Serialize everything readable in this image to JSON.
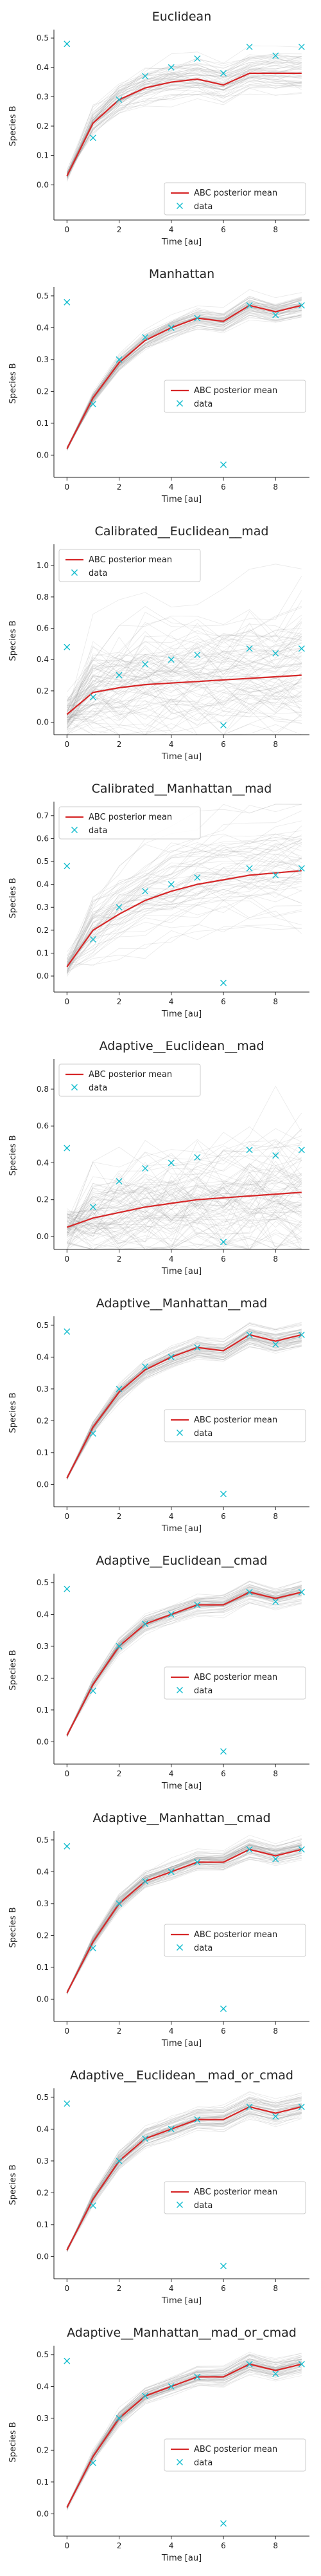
{
  "common": {
    "xlabel": "Time [au]",
    "ylabel": "Species B",
    "legend_mean": "ABC posterior mean",
    "legend_data": "data",
    "colors": {
      "mean": "#d62728",
      "data": "#17becf",
      "samples": "#9a9a9a",
      "axis": "#222222"
    }
  },
  "chart_data": [
    {
      "type": "line",
      "title": "Euclidean",
      "xlabel": "Time [au]",
      "ylabel": "Species B",
      "xlim": [
        -0.5,
        9.3
      ],
      "ylim": [
        -0.12,
        0.52
      ],
      "xticks": [
        0,
        2,
        4,
        6,
        8
      ],
      "yticks": [
        0.0,
        0.1,
        0.2,
        0.3,
        0.4,
        0.5
      ],
      "legend": "lower right",
      "samples_spread": "narrow",
      "series": [
        {
          "name": "ABC posterior mean",
          "x": [
            0,
            1,
            2,
            3,
            4,
            5,
            6,
            7,
            8,
            9
          ],
          "y": [
            0.03,
            0.21,
            0.29,
            0.33,
            0.35,
            0.36,
            0.34,
            0.38,
            0.38,
            0.38
          ]
        },
        {
          "name": "data",
          "x": [
            0,
            1,
            2,
            3,
            4,
            5,
            6,
            7,
            8,
            9
          ],
          "y": [
            0.48,
            0.16,
            0.29,
            0.37,
            0.4,
            0.43,
            0.38,
            0.47,
            0.44,
            0.47
          ]
        }
      ]
    },
    {
      "type": "line",
      "title": "Manhattan",
      "xlabel": "Time [au]",
      "ylabel": "Species B",
      "xlim": [
        -0.5,
        9.3
      ],
      "ylim": [
        -0.07,
        0.52
      ],
      "xticks": [
        0,
        2,
        4,
        6,
        8
      ],
      "yticks": [
        0.0,
        0.1,
        0.2,
        0.3,
        0.4,
        0.5
      ],
      "legend": "center right",
      "samples_spread": "tight",
      "series": [
        {
          "name": "ABC posterior mean",
          "x": [
            0,
            1,
            2,
            3,
            4,
            5,
            6,
            7,
            8,
            9
          ],
          "y": [
            0.02,
            0.18,
            0.29,
            0.36,
            0.4,
            0.43,
            0.42,
            0.47,
            0.45,
            0.47
          ]
        },
        {
          "name": "data",
          "x": [
            0,
            1,
            2,
            3,
            4,
            5,
            6,
            7,
            8,
            9
          ],
          "y": [
            0.48,
            0.16,
            0.3,
            0.37,
            0.4,
            0.43,
            -0.03,
            0.47,
            0.44,
            0.47
          ]
        }
      ]
    },
    {
      "type": "line",
      "title": "Calibrated__Euclidean__mad",
      "xlabel": "Time [au]",
      "ylabel": "Species B",
      "xlim": [
        -0.5,
        9.3
      ],
      "ylim": [
        -0.08,
        1.12
      ],
      "xticks": [
        0,
        2,
        4,
        6,
        8
      ],
      "yticks": [
        0.0,
        0.2,
        0.4,
        0.6,
        0.8,
        1.0
      ],
      "legend": "upper left",
      "samples_spread": "wide",
      "series": [
        {
          "name": "ABC posterior mean",
          "x": [
            0,
            1,
            2,
            3,
            4,
            5,
            6,
            7,
            8,
            9
          ],
          "y": [
            0.05,
            0.19,
            0.22,
            0.24,
            0.25,
            0.26,
            0.27,
            0.28,
            0.29,
            0.3
          ]
        },
        {
          "name": "data",
          "x": [
            0,
            1,
            2,
            3,
            4,
            5,
            6,
            7,
            8,
            9
          ],
          "y": [
            0.48,
            0.16,
            0.3,
            0.37,
            0.4,
            0.43,
            -0.02,
            0.47,
            0.44,
            0.47
          ]
        }
      ]
    },
    {
      "type": "line",
      "title": "Calibrated__Manhattan__mad",
      "xlabel": "Time [au]",
      "ylabel": "Species B",
      "xlim": [
        -0.5,
        9.3
      ],
      "ylim": [
        -0.07,
        0.75
      ],
      "xticks": [
        0,
        2,
        4,
        6,
        8
      ],
      "yticks": [
        0.0,
        0.1,
        0.2,
        0.3,
        0.4,
        0.5,
        0.6,
        0.7
      ],
      "legend": "upper left",
      "samples_spread": "medium",
      "series": [
        {
          "name": "ABC posterior mean",
          "x": [
            0,
            1,
            2,
            3,
            4,
            5,
            6,
            7,
            8,
            9
          ],
          "y": [
            0.04,
            0.2,
            0.27,
            0.33,
            0.37,
            0.4,
            0.42,
            0.44,
            0.45,
            0.46
          ]
        },
        {
          "name": "data",
          "x": [
            0,
            1,
            2,
            3,
            4,
            5,
            6,
            7,
            8,
            9
          ],
          "y": [
            0.48,
            0.16,
            0.3,
            0.37,
            0.4,
            0.43,
            -0.03,
            0.47,
            0.44,
            0.47
          ]
        }
      ]
    },
    {
      "type": "line",
      "title": "Adaptive__Euclidean__mad",
      "xlabel": "Time [au]",
      "ylabel": "Species B",
      "xlim": [
        -0.5,
        9.3
      ],
      "ylim": [
        -0.07,
        0.95
      ],
      "xticks": [
        0,
        2,
        4,
        6,
        8
      ],
      "yticks": [
        0.0,
        0.2,
        0.4,
        0.6,
        0.8
      ],
      "legend": "upper left",
      "samples_spread": "wide",
      "series": [
        {
          "name": "ABC posterior mean",
          "x": [
            0,
            1,
            2,
            3,
            4,
            5,
            6,
            7,
            8,
            9
          ],
          "y": [
            0.05,
            0.1,
            0.13,
            0.16,
            0.18,
            0.2,
            0.21,
            0.22,
            0.23,
            0.24
          ]
        },
        {
          "name": "data",
          "x": [
            0,
            1,
            2,
            3,
            4,
            5,
            6,
            7,
            8,
            9
          ],
          "y": [
            0.48,
            0.16,
            0.3,
            0.37,
            0.4,
            0.43,
            -0.03,
            0.47,
            0.44,
            0.47
          ]
        }
      ]
    },
    {
      "type": "line",
      "title": "Adaptive__Manhattan__mad",
      "xlabel": "Time [au]",
      "ylabel": "Species B",
      "xlim": [
        -0.5,
        9.3
      ],
      "ylim": [
        -0.07,
        0.52
      ],
      "xticks": [
        0,
        2,
        4,
        6,
        8
      ],
      "yticks": [
        0.0,
        0.1,
        0.2,
        0.3,
        0.4,
        0.5
      ],
      "legend": "center right",
      "samples_spread": "tight",
      "series": [
        {
          "name": "ABC posterior mean",
          "x": [
            0,
            1,
            2,
            3,
            4,
            5,
            6,
            7,
            8,
            9
          ],
          "y": [
            0.02,
            0.18,
            0.29,
            0.36,
            0.4,
            0.43,
            0.42,
            0.47,
            0.45,
            0.47
          ]
        },
        {
          "name": "data",
          "x": [
            0,
            1,
            2,
            3,
            4,
            5,
            6,
            7,
            8,
            9
          ],
          "y": [
            0.48,
            0.16,
            0.3,
            0.37,
            0.4,
            0.43,
            -0.03,
            0.47,
            0.44,
            0.47
          ]
        }
      ]
    },
    {
      "type": "line",
      "title": "Adaptive__Euclidean__cmad",
      "xlabel": "Time [au]",
      "ylabel": "Species B",
      "xlim": [
        -0.5,
        9.3
      ],
      "ylim": [
        -0.07,
        0.52
      ],
      "xticks": [
        0,
        2,
        4,
        6,
        8
      ],
      "yticks": [
        0.0,
        0.1,
        0.2,
        0.3,
        0.4,
        0.5
      ],
      "legend": "center right",
      "samples_spread": "tight",
      "series": [
        {
          "name": "ABC posterior mean",
          "x": [
            0,
            1,
            2,
            3,
            4,
            5,
            6,
            7,
            8,
            9
          ],
          "y": [
            0.02,
            0.18,
            0.3,
            0.37,
            0.4,
            0.43,
            0.43,
            0.47,
            0.45,
            0.47
          ]
        },
        {
          "name": "data",
          "x": [
            0,
            1,
            2,
            3,
            4,
            5,
            6,
            7,
            8,
            9
          ],
          "y": [
            0.48,
            0.16,
            0.3,
            0.37,
            0.4,
            0.43,
            -0.03,
            0.47,
            0.44,
            0.47
          ]
        }
      ]
    },
    {
      "type": "line",
      "title": "Adaptive__Manhattan__cmad",
      "xlabel": "Time [au]",
      "ylabel": "Species B",
      "xlim": [
        -0.5,
        9.3
      ],
      "ylim": [
        -0.07,
        0.52
      ],
      "xticks": [
        0,
        2,
        4,
        6,
        8
      ],
      "yticks": [
        0.0,
        0.1,
        0.2,
        0.3,
        0.4,
        0.5
      ],
      "legend": "center right",
      "samples_spread": "tight",
      "series": [
        {
          "name": "ABC posterior mean",
          "x": [
            0,
            1,
            2,
            3,
            4,
            5,
            6,
            7,
            8,
            9
          ],
          "y": [
            0.02,
            0.18,
            0.3,
            0.37,
            0.4,
            0.43,
            0.43,
            0.47,
            0.45,
            0.47
          ]
        },
        {
          "name": "data",
          "x": [
            0,
            1,
            2,
            3,
            4,
            5,
            6,
            7,
            8,
            9
          ],
          "y": [
            0.48,
            0.16,
            0.3,
            0.37,
            0.4,
            0.43,
            -0.03,
            0.47,
            0.44,
            0.47
          ]
        }
      ]
    },
    {
      "type": "line",
      "title": "Adaptive__Euclidean__mad_or_cmad",
      "xlabel": "Time [au]",
      "ylabel": "Species B",
      "xlim": [
        -0.5,
        9.3
      ],
      "ylim": [
        -0.07,
        0.52
      ],
      "xticks": [
        0,
        2,
        4,
        6,
        8
      ],
      "yticks": [
        0.0,
        0.1,
        0.2,
        0.3,
        0.4,
        0.5
      ],
      "legend": "center right",
      "samples_spread": "tight",
      "series": [
        {
          "name": "ABC posterior mean",
          "x": [
            0,
            1,
            2,
            3,
            4,
            5,
            6,
            7,
            8,
            9
          ],
          "y": [
            0.02,
            0.18,
            0.3,
            0.37,
            0.4,
            0.43,
            0.43,
            0.47,
            0.45,
            0.47
          ]
        },
        {
          "name": "data",
          "x": [
            0,
            1,
            2,
            3,
            4,
            5,
            6,
            7,
            8,
            9
          ],
          "y": [
            0.48,
            0.16,
            0.3,
            0.37,
            0.4,
            0.43,
            -0.03,
            0.47,
            0.44,
            0.47
          ]
        }
      ]
    },
    {
      "type": "line",
      "title": "Adaptive__Manhattan__mad_or_cmad",
      "xlabel": "Time [au]",
      "ylabel": "Species B",
      "xlim": [
        -0.5,
        9.3
      ],
      "ylim": [
        -0.07,
        0.52
      ],
      "xticks": [
        0,
        2,
        4,
        6,
        8
      ],
      "yticks": [
        0.0,
        0.1,
        0.2,
        0.3,
        0.4,
        0.5
      ],
      "legend": "center right",
      "samples_spread": "tight",
      "series": [
        {
          "name": "ABC posterior mean",
          "x": [
            0,
            1,
            2,
            3,
            4,
            5,
            6,
            7,
            8,
            9
          ],
          "y": [
            0.02,
            0.18,
            0.3,
            0.37,
            0.4,
            0.43,
            0.43,
            0.47,
            0.45,
            0.47
          ]
        },
        {
          "name": "data",
          "x": [
            0,
            1,
            2,
            3,
            4,
            5,
            6,
            7,
            8,
            9
          ],
          "y": [
            0.48,
            0.16,
            0.3,
            0.37,
            0.4,
            0.43,
            -0.03,
            0.47,
            0.44,
            0.47
          ]
        }
      ]
    }
  ]
}
